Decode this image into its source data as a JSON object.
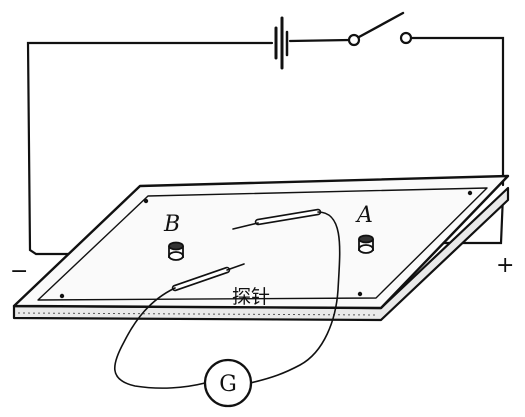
{
  "labels": {
    "electrode_a": "A",
    "electrode_b": "B",
    "positive": "+",
    "negative": "−",
    "probe": "探针",
    "galvanometer": "G"
  },
  "colors": {
    "ink": "#111111",
    "paper": "#ffffff"
  },
  "components": {
    "battery": "battery-symbol",
    "switch": "open-switch",
    "board": "conductive-paper-board",
    "probes": 2,
    "meter": "galvanometer"
  }
}
